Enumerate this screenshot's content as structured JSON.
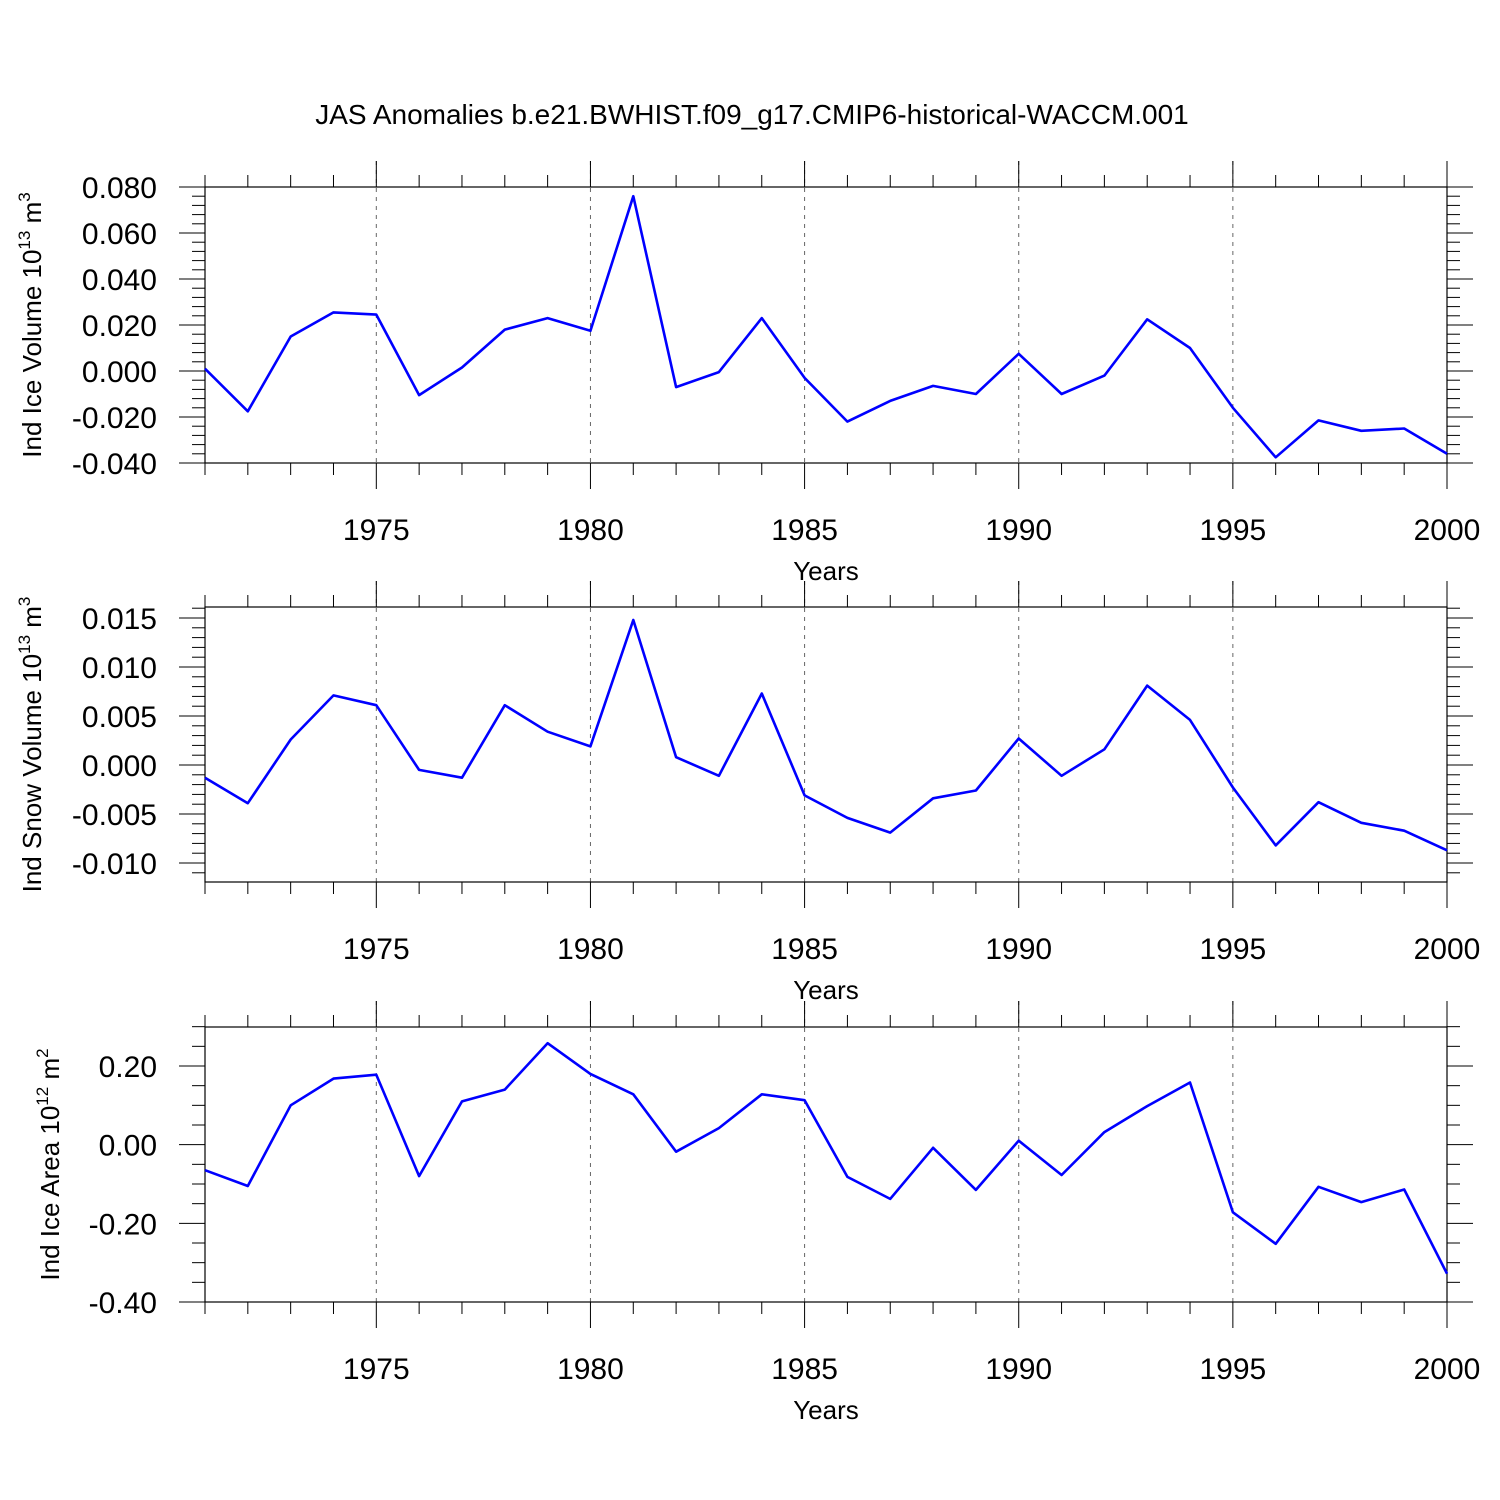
{
  "figure": {
    "title": "JAS Anomalies b.e21.BWHIST.f09_g17.CMIP6-historical-WACCM.001",
    "line_color": "#0000ff"
  },
  "chart_data": [
    {
      "type": "line",
      "ylabel": "Ind Ice Volume 10",
      "ylabel_exp": "13",
      "ylabel_unit": "m",
      "ylabel_unit_exp": "3",
      "xlabel": "Years",
      "xlim": [
        1971,
        2000
      ],
      "ylim": [
        -0.04,
        0.08
      ],
      "grid": "vertical-dashed-at-major-x",
      "x_major_ticks": [
        1975,
        1980,
        1985,
        1990,
        1995,
        2000
      ],
      "x_tick_labels": [
        "1975",
        "1980",
        "1985",
        "1990",
        "1995",
        "2000"
      ],
      "y_major_ticks": [
        -0.04,
        -0.02,
        0.0,
        0.02,
        0.04,
        0.06,
        0.08
      ],
      "y_tick_labels": [
        "-0.040",
        "-0.020",
        "0.000",
        "0.020",
        "0.040",
        "0.060",
        "0.080"
      ],
      "y_minor_step": 0.004,
      "x": [
        1971,
        1972,
        1973,
        1974,
        1975,
        1976,
        1977,
        1978,
        1979,
        1980,
        1981,
        1982,
        1983,
        1984,
        1985,
        1986,
        1987,
        1988,
        1989,
        1990,
        1991,
        1992,
        1993,
        1994,
        1995,
        1996,
        1997,
        1998,
        1999,
        2000
      ],
      "series": [
        {
          "values": [
            0.001,
            -0.0175,
            0.015,
            0.0255,
            0.0245,
            -0.0105,
            0.0015,
            0.018,
            0.023,
            0.0175,
            0.076,
            -0.007,
            -0.0005,
            0.023,
            -0.003,
            -0.022,
            -0.013,
            -0.0065,
            -0.01,
            0.0075,
            -0.01,
            -0.002,
            0.0225,
            0.01,
            -0.016,
            -0.0375,
            -0.0215,
            -0.026,
            -0.025,
            -0.036
          ]
        }
      ]
    },
    {
      "type": "line",
      "ylabel": "Ind Snow Volume 10",
      "ylabel_exp": "13",
      "ylabel_unit": "m",
      "ylabel_unit_exp": "3",
      "xlabel": "Years",
      "xlim": [
        1971,
        2000
      ],
      "ylim": [
        -0.012,
        0.016
      ],
      "grid": "vertical-dashed-at-major-x",
      "x_major_ticks": [
        1975,
        1980,
        1985,
        1990,
        1995,
        2000
      ],
      "x_tick_labels": [
        "1975",
        "1980",
        "1985",
        "1990",
        "1995",
        "2000"
      ],
      "y_major_ticks": [
        -0.01,
        -0.005,
        0.0,
        0.005,
        0.01,
        0.015
      ],
      "y_tick_labels": [
        "-0.010",
        "-0.005",
        "0.000",
        "0.005",
        "0.010",
        "0.015"
      ],
      "y_minor_step": 0.001,
      "x": [
        1971,
        1972,
        1973,
        1974,
        1975,
        1976,
        1977,
        1978,
        1979,
        1980,
        1981,
        1982,
        1983,
        1984,
        1985,
        1986,
        1987,
        1988,
        1989,
        1990,
        1991,
        1992,
        1993,
        1994,
        1995,
        1996,
        1997,
        1998,
        1999,
        2000
      ],
      "series": [
        {
          "values": [
            -0.0013,
            -0.0039,
            0.0026,
            0.0071,
            0.0061,
            -0.0005,
            -0.0013,
            0.0061,
            0.0034,
            0.0019,
            0.0148,
            0.0008,
            -0.0011,
            0.0073,
            -0.0031,
            -0.0054,
            -0.0069,
            -0.0034,
            -0.0026,
            0.0027,
            -0.0011,
            0.0016,
            0.0081,
            0.0046,
            -0.0023,
            -0.0082,
            -0.0038,
            -0.0059,
            -0.0067,
            -0.0087
          ]
        }
      ]
    },
    {
      "type": "line",
      "ylabel": "Ind Ice Area 10",
      "ylabel_exp": "12",
      "ylabel_unit": "m",
      "ylabel_unit_exp": "2",
      "xlabel": "Years",
      "xlim": [
        1971,
        2000
      ],
      "ylim": [
        -0.4,
        0.3
      ],
      "grid": "vertical-dashed-at-major-x",
      "x_major_ticks": [
        1975,
        1980,
        1985,
        1990,
        1995,
        2000
      ],
      "x_tick_labels": [
        "1975",
        "1980",
        "1985",
        "1990",
        "1995",
        "2000"
      ],
      "y_major_ticks": [
        -0.4,
        -0.2,
        0.0,
        0.2
      ],
      "y_tick_labels": [
        "-0.40",
        "-0.20",
        "0.00",
        "0.20"
      ],
      "y_minor_step": 0.05,
      "x": [
        1971,
        1972,
        1973,
        1974,
        1975,
        1976,
        1977,
        1978,
        1979,
        1980,
        1981,
        1982,
        1983,
        1984,
        1985,
        1986,
        1987,
        1988,
        1989,
        1990,
        1991,
        1992,
        1993,
        1994,
        1995,
        1996,
        1997,
        1998,
        1999,
        2000
      ],
      "series": [
        {
          "values": [
            -0.065,
            -0.105,
            0.1,
            0.168,
            0.178,
            -0.08,
            0.11,
            0.14,
            0.258,
            0.18,
            0.128,
            -0.018,
            0.042,
            0.128,
            0.113,
            -0.082,
            -0.138,
            -0.008,
            -0.115,
            0.01,
            -0.077,
            0.032,
            0.098,
            0.158,
            -0.172,
            -0.252,
            -0.107,
            -0.146,
            -0.114,
            -0.328
          ]
        }
      ]
    }
  ]
}
